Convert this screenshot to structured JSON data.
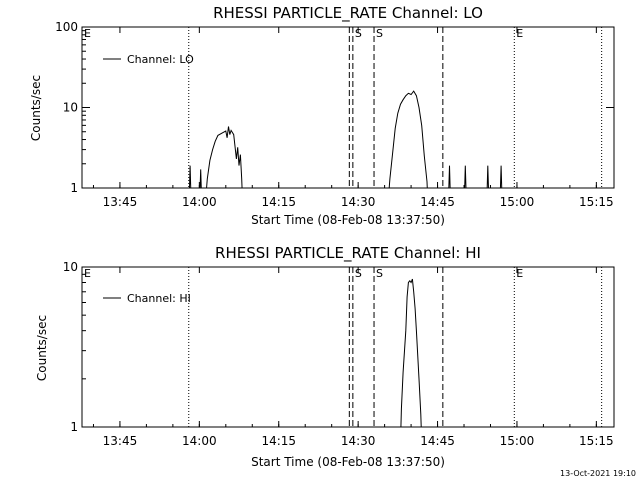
{
  "chart_data": [
    {
      "type": "line",
      "title": "RHESSI PARTICLE_RATE Channel: LO",
      "xlabel": "Start Time (08-Feb-08 13:37:50)",
      "ylabel": "Counts/sec",
      "yscale": "log",
      "ylim": [
        1,
        100
      ],
      "yticks": [
        "1",
        "10",
        "100"
      ],
      "xlim": [
        "13:37:50",
        "15:18:20"
      ],
      "xticks": [
        "13:45",
        "14:00",
        "14:15",
        "14:30",
        "14:45",
        "15:00",
        "15:15"
      ],
      "legend": {
        "label": "Channel: LO",
        "position": "top-left"
      },
      "grid": false,
      "series": [
        {
          "name": "Channel: LO",
          "points": [
            [
              "13:58:00",
              0.5
            ],
            [
              "13:58:15",
              1.9
            ],
            [
              "13:58:30",
              0.5
            ],
            [
              "14:00:00",
              0.5
            ],
            [
              "14:00:15",
              1.7
            ],
            [
              "14:00:30",
              0.5
            ],
            [
              "14:01:00",
              0.5
            ],
            [
              "14:01:30",
              1.3
            ],
            [
              "14:02:00",
              2.2
            ],
            [
              "14:02:30",
              3.0
            ],
            [
              "14:03:00",
              3.8
            ],
            [
              "14:03:30",
              4.5
            ],
            [
              "14:04:00",
              4.7
            ],
            [
              "14:04:30",
              4.9
            ],
            [
              "14:05:00",
              5.1
            ],
            [
              "14:05:15",
              4.2
            ],
            [
              "14:05:30",
              5.8
            ],
            [
              "14:05:45",
              4.6
            ],
            [
              "14:06:00",
              5.2
            ],
            [
              "14:06:30",
              4.6
            ],
            [
              "14:07:00",
              2.3
            ],
            [
              "14:07:15",
              3.2
            ],
            [
              "14:07:30",
              1.9
            ],
            [
              "14:07:45",
              2.6
            ],
            [
              "14:08:00",
              1.3
            ],
            [
              "14:08:15",
              0.5
            ],
            [
              "14:35:30",
              0.5
            ],
            [
              "14:36:00",
              1.3
            ],
            [
              "14:36:30",
              2.7
            ],
            [
              "14:37:00",
              5.5
            ],
            [
              "14:37:30",
              8.5
            ],
            [
              "14:38:00",
              11.0
            ],
            [
              "14:38:30",
              12.5
            ],
            [
              "14:39:00",
              14.0
            ],
            [
              "14:39:30",
              15.0
            ],
            [
              "14:40:00",
              14.5
            ],
            [
              "14:40:30",
              16.0
            ],
            [
              "14:41:00",
              14.0
            ],
            [
              "14:41:30",
              10.0
            ],
            [
              "14:42:00",
              6.0
            ],
            [
              "14:42:30",
              2.5
            ],
            [
              "14:43:00",
              1.2
            ],
            [
              "14:43:15",
              0.5
            ],
            [
              "14:47:00",
              0.5
            ],
            [
              "14:47:15",
              1.9
            ],
            [
              "14:47:30",
              0.5
            ],
            [
              "14:50:00",
              0.5
            ],
            [
              "14:50:15",
              1.9
            ],
            [
              "14:50:30",
              0.5
            ],
            [
              "14:54:15",
              0.5
            ],
            [
              "14:54:30",
              1.9
            ],
            [
              "14:54:45",
              0.5
            ],
            [
              "14:56:45",
              0.5
            ],
            [
              "14:57:00",
              1.9
            ],
            [
              "14:57:15",
              0.5
            ]
          ]
        }
      ],
      "annotations": [
        {
          "label": "E",
          "time": "13:37:50",
          "line": "none"
        },
        {
          "label": "",
          "time": "13:58:00",
          "line": "dotted"
        },
        {
          "label": "S",
          "time": "14:29:00",
          "line": "dashed"
        },
        {
          "label": "",
          "time": "14:28:20",
          "line": "dashed"
        },
        {
          "label": "S",
          "time": "14:33:00",
          "line": "dashed"
        },
        {
          "label": "",
          "time": "14:46:00",
          "line": "dashed"
        },
        {
          "label": "E",
          "time": "14:59:30",
          "line": "dotted"
        },
        {
          "label": "",
          "time": "15:16:00",
          "line": "dotted"
        }
      ]
    },
    {
      "type": "line",
      "title": "RHESSI PARTICLE_RATE Channel: HI",
      "xlabel": "Start Time (08-Feb-08 13:37:50)",
      "ylabel": "Counts/sec",
      "yscale": "log",
      "ylim": [
        1,
        10
      ],
      "yticks": [
        "1",
        "10"
      ],
      "xlim": [
        "13:37:50",
        "15:18:20"
      ],
      "xticks": [
        "13:45",
        "14:00",
        "14:15",
        "14:30",
        "14:45",
        "15:00",
        "15:15"
      ],
      "legend": {
        "label": "Channel: HI",
        "position": "top-left"
      },
      "grid": false,
      "series": [
        {
          "name": "Channel: HI",
          "points": [
            [
              "14:38:00",
              0.8
            ],
            [
              "14:38:10",
              1.3
            ],
            [
              "14:38:30",
              2.2
            ],
            [
              "14:39:00",
              4.0
            ],
            [
              "14:39:15",
              6.5
            ],
            [
              "14:39:30",
              8.0
            ],
            [
              "14:39:45",
              8.2
            ],
            [
              "14:40:00",
              8.0
            ],
            [
              "14:40:15",
              8.4
            ],
            [
              "14:40:30",
              7.0
            ],
            [
              "14:40:45",
              5.5
            ],
            [
              "14:41:00",
              4.0
            ],
            [
              "14:41:30",
              2.0
            ],
            [
              "14:41:50",
              1.2
            ],
            [
              "14:42:00",
              0.8
            ]
          ]
        }
      ],
      "annotations": [
        {
          "label": "E",
          "time": "13:37:50",
          "line": "none"
        },
        {
          "label": "",
          "time": "13:58:00",
          "line": "dotted"
        },
        {
          "label": "S",
          "time": "14:29:00",
          "line": "dashed"
        },
        {
          "label": "",
          "time": "14:28:20",
          "line": "dashed"
        },
        {
          "label": "S",
          "time": "14:33:00",
          "line": "dashed"
        },
        {
          "label": "",
          "time": "14:46:00",
          "line": "dashed"
        },
        {
          "label": "E",
          "time": "14:59:30",
          "line": "dotted"
        },
        {
          "label": "",
          "time": "15:16:00",
          "line": "dotted"
        }
      ]
    }
  ],
  "timestamp": "13-Oct-2021 19:10"
}
